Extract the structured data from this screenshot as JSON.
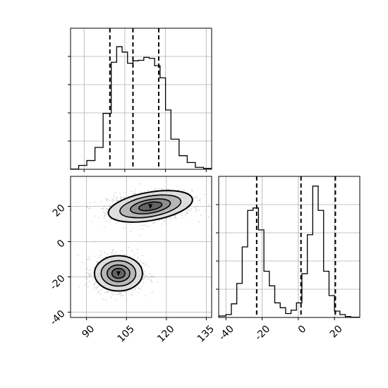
{
  "chart_data": [
    {
      "type": "bar",
      "panel": "marginal-x",
      "xlim": [
        85,
        137
      ],
      "ylim": [
        0,
        2900
      ],
      "grid": true,
      "bin_edges": [
        85,
        88,
        91,
        94,
        97,
        100,
        102,
        104,
        106,
        108,
        110,
        112,
        114,
        116,
        118,
        120,
        122,
        125,
        128,
        131,
        134,
        137
      ],
      "counts": [
        5,
        80,
        180,
        450,
        1150,
        2200,
        2520,
        2410,
        2180,
        2230,
        2240,
        2300,
        2280,
        2130,
        1880,
        1220,
        620,
        280,
        140,
        40,
        20
      ],
      "quantile_lines": [
        99.5,
        108.0,
        117.5
      ]
    },
    {
      "type": "scatter",
      "panel": "joint-xy",
      "xlim": [
        84,
        137
      ],
      "ylim": [
        -43,
        37
      ],
      "x_ticks": [
        90,
        105,
        120,
        135
      ],
      "y_ticks": [
        20,
        0,
        -20,
        -40
      ],
      "grid": true,
      "clusters": [
        {
          "center_x": 114,
          "center_y": 20,
          "spread_x": 8,
          "spread_y": 4,
          "orientation_deg": 10
        },
        {
          "center_x": 102,
          "center_y": -18,
          "spread_x": 4.5,
          "spread_y": 5
        }
      ]
    },
    {
      "type": "bar",
      "panel": "marginal-y",
      "xlim": [
        -44,
        34
      ],
      "ylim": [
        0,
        2900
      ],
      "x_ticks": [
        -40,
        -20,
        0,
        20
      ],
      "grid": true,
      "bin_edges": [
        -44,
        -40,
        -37,
        -34,
        -31,
        -28,
        -25,
        -22,
        -19,
        -16,
        -13,
        -10,
        -7,
        -4,
        -1,
        2,
        5,
        8,
        11,
        14,
        17,
        20,
        23,
        26,
        29,
        34
      ],
      "counts": [
        30,
        60,
        280,
        700,
        1450,
        2200,
        2250,
        1800,
        950,
        650,
        300,
        200,
        80,
        150,
        300,
        900,
        1700,
        2700,
        2200,
        950,
        450,
        130,
        60,
        20,
        5
      ],
      "quantile_lines": [
        -23.0,
        1.5,
        20.5
      ]
    }
  ]
}
